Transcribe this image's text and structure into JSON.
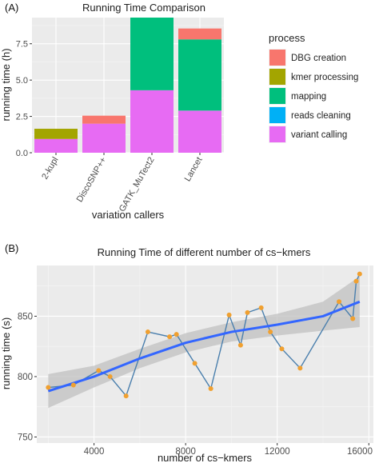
{
  "panels": {
    "a_tag": "(A)",
    "b_tag": "(B)"
  },
  "chart_data": [
    {
      "type": "bar",
      "stacked": true,
      "title": "Running Time Comparison",
      "xlabel": "variation callers",
      "ylabel": "running time (h)",
      "categories": [
        "2-kupl",
        "DiscoSNP++",
        "GATK_MuTect2",
        "Lancet"
      ],
      "ylim": [
        0,
        9.3
      ],
      "yticks": [
        "0.0",
        "2.5",
        "5.0",
        "7.5"
      ],
      "ytick_values": [
        0,
        2.5,
        5,
        7.5
      ],
      "grid": true,
      "background": "#ebebeb",
      "legend": {
        "title": "process",
        "placement": "right",
        "entries": [
          "DBG creation",
          "kmer processing",
          "mapping",
          "reads cleaning",
          "variant calling"
        ]
      },
      "series": [
        {
          "name": "variant calling",
          "color": "#e76bf3",
          "values": [
            0.95,
            2.0,
            4.3,
            2.9
          ]
        },
        {
          "name": "reads cleaning",
          "color": "#00b0f6",
          "values": [
            0,
            0,
            0,
            0
          ]
        },
        {
          "name": "mapping",
          "color": "#00bf7d",
          "values": [
            0,
            0,
            5.0,
            4.9
          ]
        },
        {
          "name": "kmer processing",
          "color": "#a3a500",
          "values": [
            0.7,
            0,
            0,
            0
          ]
        },
        {
          "name": "DBG creation",
          "color": "#f8766d",
          "values": [
            0,
            0.55,
            0,
            0.75
          ]
        }
      ]
    },
    {
      "type": "line",
      "title": "Running Time of different number of cs−kmers",
      "xlabel": "number of cs−kmers",
      "ylabel": "running time (s)",
      "xlim": [
        1500,
        16200
      ],
      "ylim": [
        745,
        892
      ],
      "xticks": [
        "4000",
        "8000",
        "12000",
        "16000"
      ],
      "xtick_values": [
        4000,
        8000,
        12000,
        16000
      ],
      "yticks": [
        "750",
        "800",
        "850"
      ],
      "ytick_values": [
        750,
        800,
        850
      ],
      "grid": true,
      "background": "#ebebeb",
      "point_color": "#f0a030",
      "line_color": "#4a7fad",
      "smooth_color": "#3366ff",
      "band_color": "#c0c0c0",
      "series": [
        {
          "x": [
            2000,
            3100,
            4200,
            4700,
            5400,
            6350,
            7300,
            7600,
            8400,
            9100,
            9900,
            10400,
            10700,
            11300,
            11700,
            12200,
            13000,
            14700,
            15300,
            15450,
            15600
          ],
          "y": [
            791,
            793,
            805,
            800,
            784,
            837,
            833,
            835,
            811,
            790,
            851,
            826,
            853,
            857,
            837,
            823,
            807,
            862,
            848,
            879,
            885
          ]
        }
      ],
      "smooth": {
        "x": [
          2000,
          4000,
          6000,
          8000,
          10000,
          12000,
          14000,
          15600
        ],
        "y": [
          788,
          800,
          815,
          828,
          837,
          843,
          850,
          862
        ],
        "band_halfwidth": [
          14,
          9,
          8,
          8,
          8,
          9,
          12,
          21
        ]
      }
    }
  ]
}
